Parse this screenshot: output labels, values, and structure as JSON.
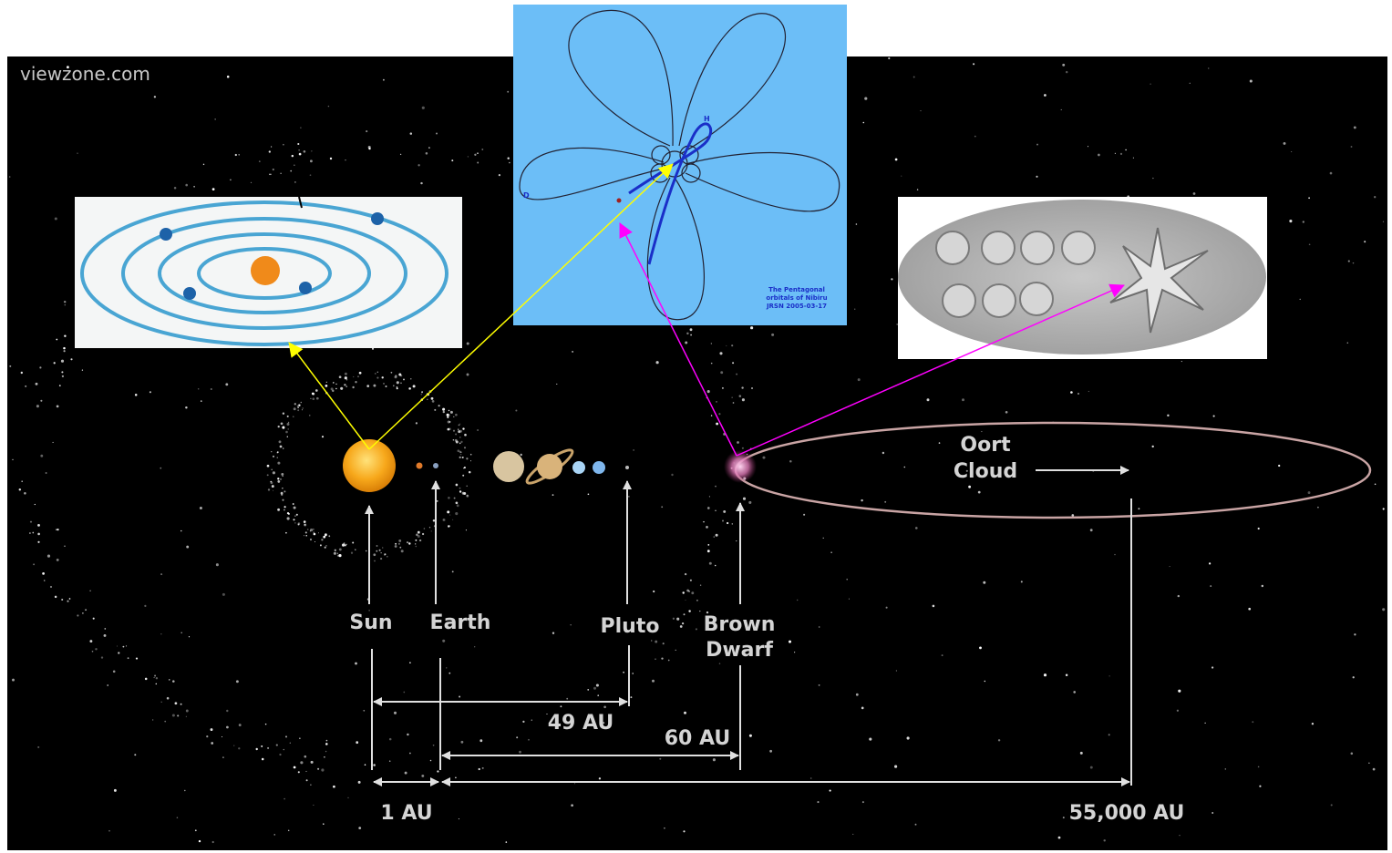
{
  "watermark": "viewzone.com",
  "bodies": {
    "sun": "Sun",
    "earth": "Earth",
    "pluto": "Pluto",
    "brown_dwarf": [
      "Brown",
      "Dwarf"
    ],
    "oort_cloud": [
      "Oort",
      "Cloud"
    ]
  },
  "distances": {
    "sun_pluto": "49 AU",
    "earth_brown_dwarf": "60 AU",
    "sun_earth": "1 AU",
    "earth_oort": "55,000 AU"
  },
  "nibiru_inset": {
    "marker_h": "H",
    "marker_d": "D",
    "caption": [
      "The Pentagonal",
      "orbitals of Nibiru",
      "JRSN 2005-03-17"
    ]
  }
}
